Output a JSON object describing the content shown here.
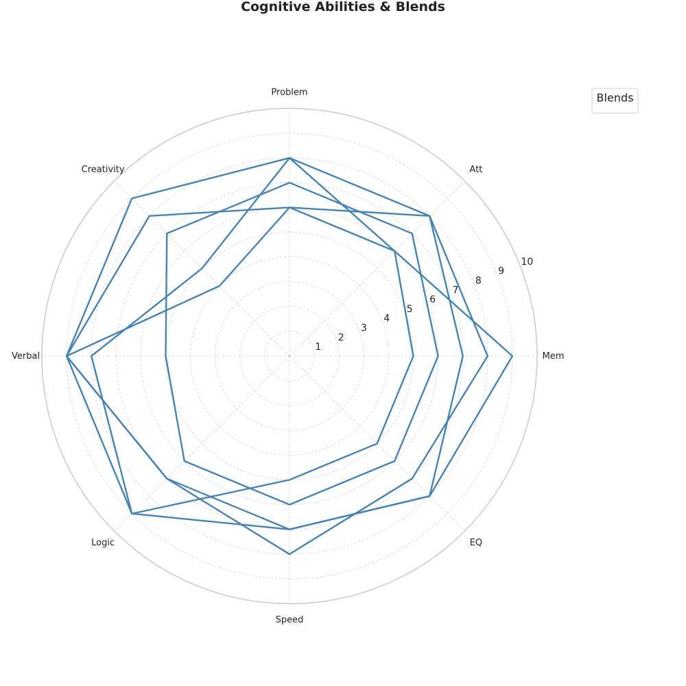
{
  "chart_data": {
    "type": "radar",
    "title": "Cognitive Abilities & Blends",
    "axes": [
      "Mem",
      "Att",
      "Problem",
      "Creativity",
      "Verbal",
      "Logic",
      "Speed",
      "EQ"
    ],
    "rlim": [
      0,
      10
    ],
    "r_ticks": [
      "1",
      "2",
      "3",
      "4",
      "5",
      "6",
      "7",
      "8",
      "9",
      "10"
    ],
    "grid": true,
    "legend": {
      "title": "Blends",
      "placement": "top-right",
      "entries": []
    },
    "series_color": "#4682b4",
    "series": [
      {
        "values": [
          5,
          6,
          6,
          4,
          9,
          9,
          5,
          5
        ]
      },
      {
        "values": [
          6,
          7,
          7,
          7,
          5,
          6,
          6,
          6
        ]
      },
      {
        "values": [
          7,
          8,
          8,
          9,
          9,
          7,
          7,
          8
        ]
      },
      {
        "values": [
          8,
          8,
          6,
          8,
          9,
          7,
          8,
          7
        ]
      },
      {
        "values": [
          9,
          6,
          8,
          5,
          8,
          9,
          7,
          8
        ]
      }
    ]
  }
}
